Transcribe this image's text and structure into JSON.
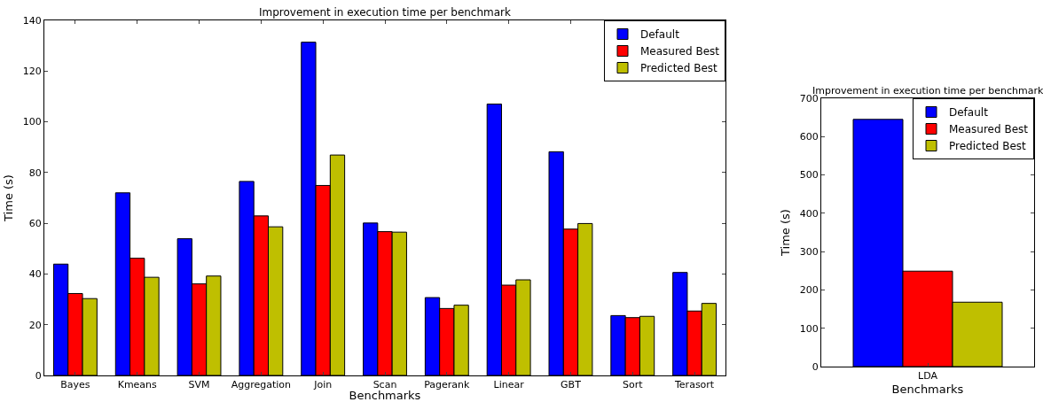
{
  "chart_data": [
    {
      "type": "bar",
      "title": "Improvement in execution time per benchmark",
      "xlabel": "Benchmarks",
      "ylabel": "Time (s)",
      "categories": [
        "Bayes",
        "Kmeans",
        "SVM",
        "Aggregation",
        "Join",
        "Scan",
        "Pagerank",
        "Linear",
        "GBT",
        "Sort",
        "Terasort"
      ],
      "series": [
        {
          "name": "Default",
          "color": "#0000ff",
          "values": [
            43.9,
            72,
            53.9,
            76.5,
            131.4,
            60.1,
            30.7,
            107,
            88.2,
            23.6,
            40.6
          ]
        },
        {
          "name": "Measured Best",
          "color": "#ff0000",
          "values": [
            32.3,
            46.2,
            36.1,
            62.9,
            74.9,
            56.7,
            26.4,
            35.6,
            57.7,
            22.8,
            25.4
          ]
        },
        {
          "name": "Predicted Best",
          "color": "#bfbf00",
          "values": [
            30.3,
            38.7,
            39.2,
            58.6,
            86.9,
            56.5,
            27.7,
            37.7,
            59.9,
            23.3,
            28.4
          ]
        }
      ],
      "ylim": [
        0,
        140
      ],
      "yticks": [
        0,
        20,
        40,
        60,
        80,
        100,
        120,
        140
      ],
      "grid": false,
      "legend": "top right"
    },
    {
      "type": "bar",
      "title": "Improvement in execution time per benchmark",
      "xlabel": "Benchmarks",
      "ylabel": "Time (s)",
      "categories": [
        "LDA"
      ],
      "series": [
        {
          "name": "Default",
          "color": "#0000ff",
          "values": [
            645
          ]
        },
        {
          "name": "Measured Best",
          "color": "#ff0000",
          "values": [
            249
          ]
        },
        {
          "name": "Predicted Best",
          "color": "#bfbf00",
          "values": [
            168
          ]
        }
      ],
      "ylim": [
        0,
        700
      ],
      "yticks": [
        0,
        100,
        200,
        300,
        400,
        500,
        600,
        700
      ],
      "grid": false,
      "legend": "top right"
    }
  ]
}
